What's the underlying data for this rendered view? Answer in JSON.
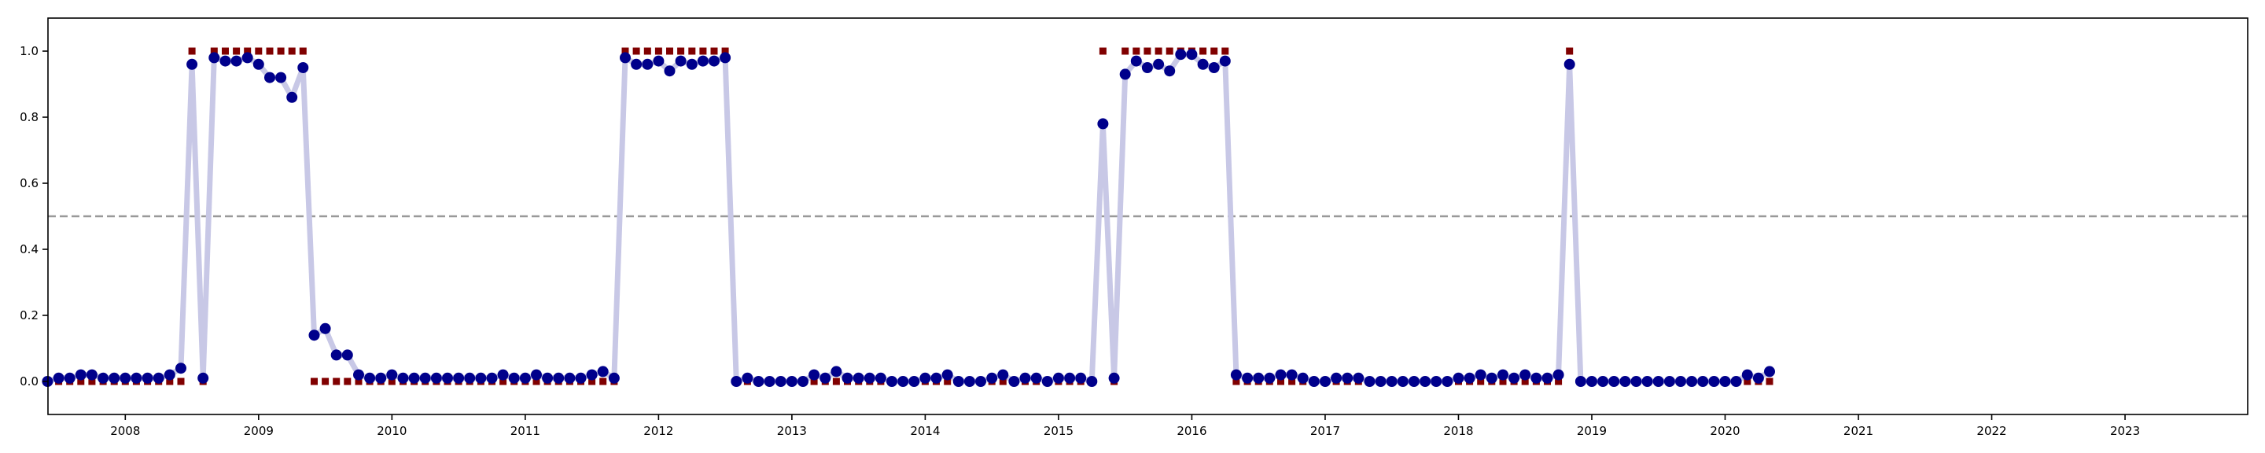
{
  "chart_data": {
    "type": "scatter",
    "title": "",
    "xlabel": "",
    "ylabel": "",
    "xlim": [
      2007.42,
      2023.92
    ],
    "ylim": [
      -0.1,
      1.1
    ],
    "x_ticks": [
      {
        "value": 2008,
        "label": "2008"
      },
      {
        "value": 2009,
        "label": "2009"
      },
      {
        "value": 2010,
        "label": "2010"
      },
      {
        "value": 2011,
        "label": "2011"
      },
      {
        "value": 2012,
        "label": "2012"
      },
      {
        "value": 2013,
        "label": "2013"
      },
      {
        "value": 2014,
        "label": "2014"
      },
      {
        "value": 2015,
        "label": "2015"
      },
      {
        "value": 2016,
        "label": "2016"
      },
      {
        "value": 2017,
        "label": "2017"
      },
      {
        "value": 2018,
        "label": "2018"
      },
      {
        "value": 2019,
        "label": "2019"
      },
      {
        "value": 2020,
        "label": "2020"
      },
      {
        "value": 2021,
        "label": "2021"
      },
      {
        "value": 2022,
        "label": "2022"
      },
      {
        "value": 2023,
        "label": "2023"
      }
    ],
    "y_ticks": [
      {
        "value": 0.0,
        "label": "0.0"
      },
      {
        "value": 0.2,
        "label": "0.2"
      },
      {
        "value": 0.4,
        "label": "0.4"
      },
      {
        "value": 0.6,
        "label": "0.6"
      },
      {
        "value": 0.8,
        "label": "0.8"
      },
      {
        "value": 1.0,
        "label": "1.0"
      }
    ],
    "threshold": 0.5,
    "grid": false,
    "legend": "none",
    "start_date": "2007-06",
    "step_months": 1,
    "colors": {
      "probability_line": "#c8c8e6",
      "probability_points": "#00008b",
      "state_markers": "#800000",
      "threshold_line": "#999999",
      "axis": "#000000"
    },
    "series": [
      {
        "values": [
          0.0,
          0.01,
          0.01,
          0.02,
          0.02,
          0.01,
          0.01,
          0.01,
          0.01,
          0.01,
          0.01,
          0.02,
          0.04,
          0.96,
          0.01,
          0.98,
          0.97,
          0.97,
          0.98,
          0.96,
          0.92,
          0.92,
          0.86,
          0.95,
          0.14,
          0.16,
          0.08,
          0.08,
          0.02,
          0.01,
          0.01,
          0.02,
          0.01,
          0.01,
          0.01,
          0.01,
          0.01,
          0.01,
          0.01,
          0.01,
          0.01,
          0.02,
          0.01,
          0.01,
          0.02,
          0.01,
          0.01,
          0.01,
          0.01,
          0.02,
          0.03,
          0.01,
          0.98,
          0.96,
          0.96,
          0.97,
          0.94,
          0.97,
          0.96,
          0.97,
          0.97,
          0.98,
          0.0,
          0.01,
          0.0,
          0.0,
          0.0,
          0.0,
          0.0,
          0.02,
          0.01,
          0.03,
          0.01,
          0.01,
          0.01,
          0.01,
          0.0,
          0.0,
          0.0,
          0.01,
          0.01,
          0.02,
          0.0,
          0.0,
          0.0,
          0.01,
          0.02,
          0.0,
          0.01,
          0.01,
          0.0,
          0.01,
          0.01,
          0.01,
          0.0,
          0.78,
          0.01,
          0.93,
          0.97,
          0.95,
          0.96,
          0.94,
          0.99,
          0.99,
          0.96,
          0.95,
          0.97,
          0.02,
          0.01,
          0.01,
          0.01,
          0.02,
          0.02,
          0.01,
          0.0,
          0.0,
          0.01,
          0.01,
          0.01,
          0.0,
          0.0,
          0.0,
          0.0,
          0.0,
          0.0,
          0.0,
          0.0,
          0.01,
          0.01,
          0.02,
          0.01,
          0.02,
          0.01,
          0.02,
          0.01,
          0.01,
          0.02,
          0.96,
          0.0,
          0.0,
          0.0,
          0.0,
          0.0,
          0.0,
          0.0,
          0.0,
          0.0,
          0.0,
          0.0,
          0.0,
          0.0,
          0.0,
          0.0,
          0.02,
          0.01,
          0.03
        ]
      },
      {
        "values": [
          0,
          0,
          0,
          0,
          0,
          0,
          0,
          0,
          0,
          0,
          0,
          0,
          0,
          1,
          0,
          1,
          1,
          1,
          1,
          1,
          1,
          1,
          1,
          1,
          0,
          0,
          0,
          0,
          0,
          0,
          0,
          0,
          0,
          0,
          0,
          0,
          0,
          0,
          0,
          0,
          0,
          0,
          0,
          0,
          0,
          0,
          0,
          0,
          0,
          0,
          0,
          0,
          1,
          1,
          1,
          1,
          1,
          1,
          1,
          1,
          1,
          1,
          0,
          0,
          0,
          0,
          0,
          0,
          0,
          0,
          0,
          0,
          0,
          0,
          0,
          0,
          0,
          0,
          0,
          0,
          0,
          0,
          0,
          0,
          0,
          0,
          0,
          0,
          0,
          0,
          0,
          0,
          0,
          0,
          0,
          1,
          0,
          1,
          1,
          1,
          1,
          1,
          1,
          1,
          1,
          1,
          1,
          0,
          0,
          0,
          0,
          0,
          0,
          0,
          0,
          0,
          0,
          0,
          0,
          0,
          0,
          0,
          0,
          0,
          0,
          0,
          0,
          0,
          0,
          0,
          0,
          0,
          0,
          0,
          0,
          0,
          0,
          1,
          0,
          0,
          0,
          0,
          0,
          0,
          0,
          0,
          0,
          0,
          0,
          0,
          0,
          0,
          0,
          0,
          0,
          0
        ]
      }
    ]
  }
}
